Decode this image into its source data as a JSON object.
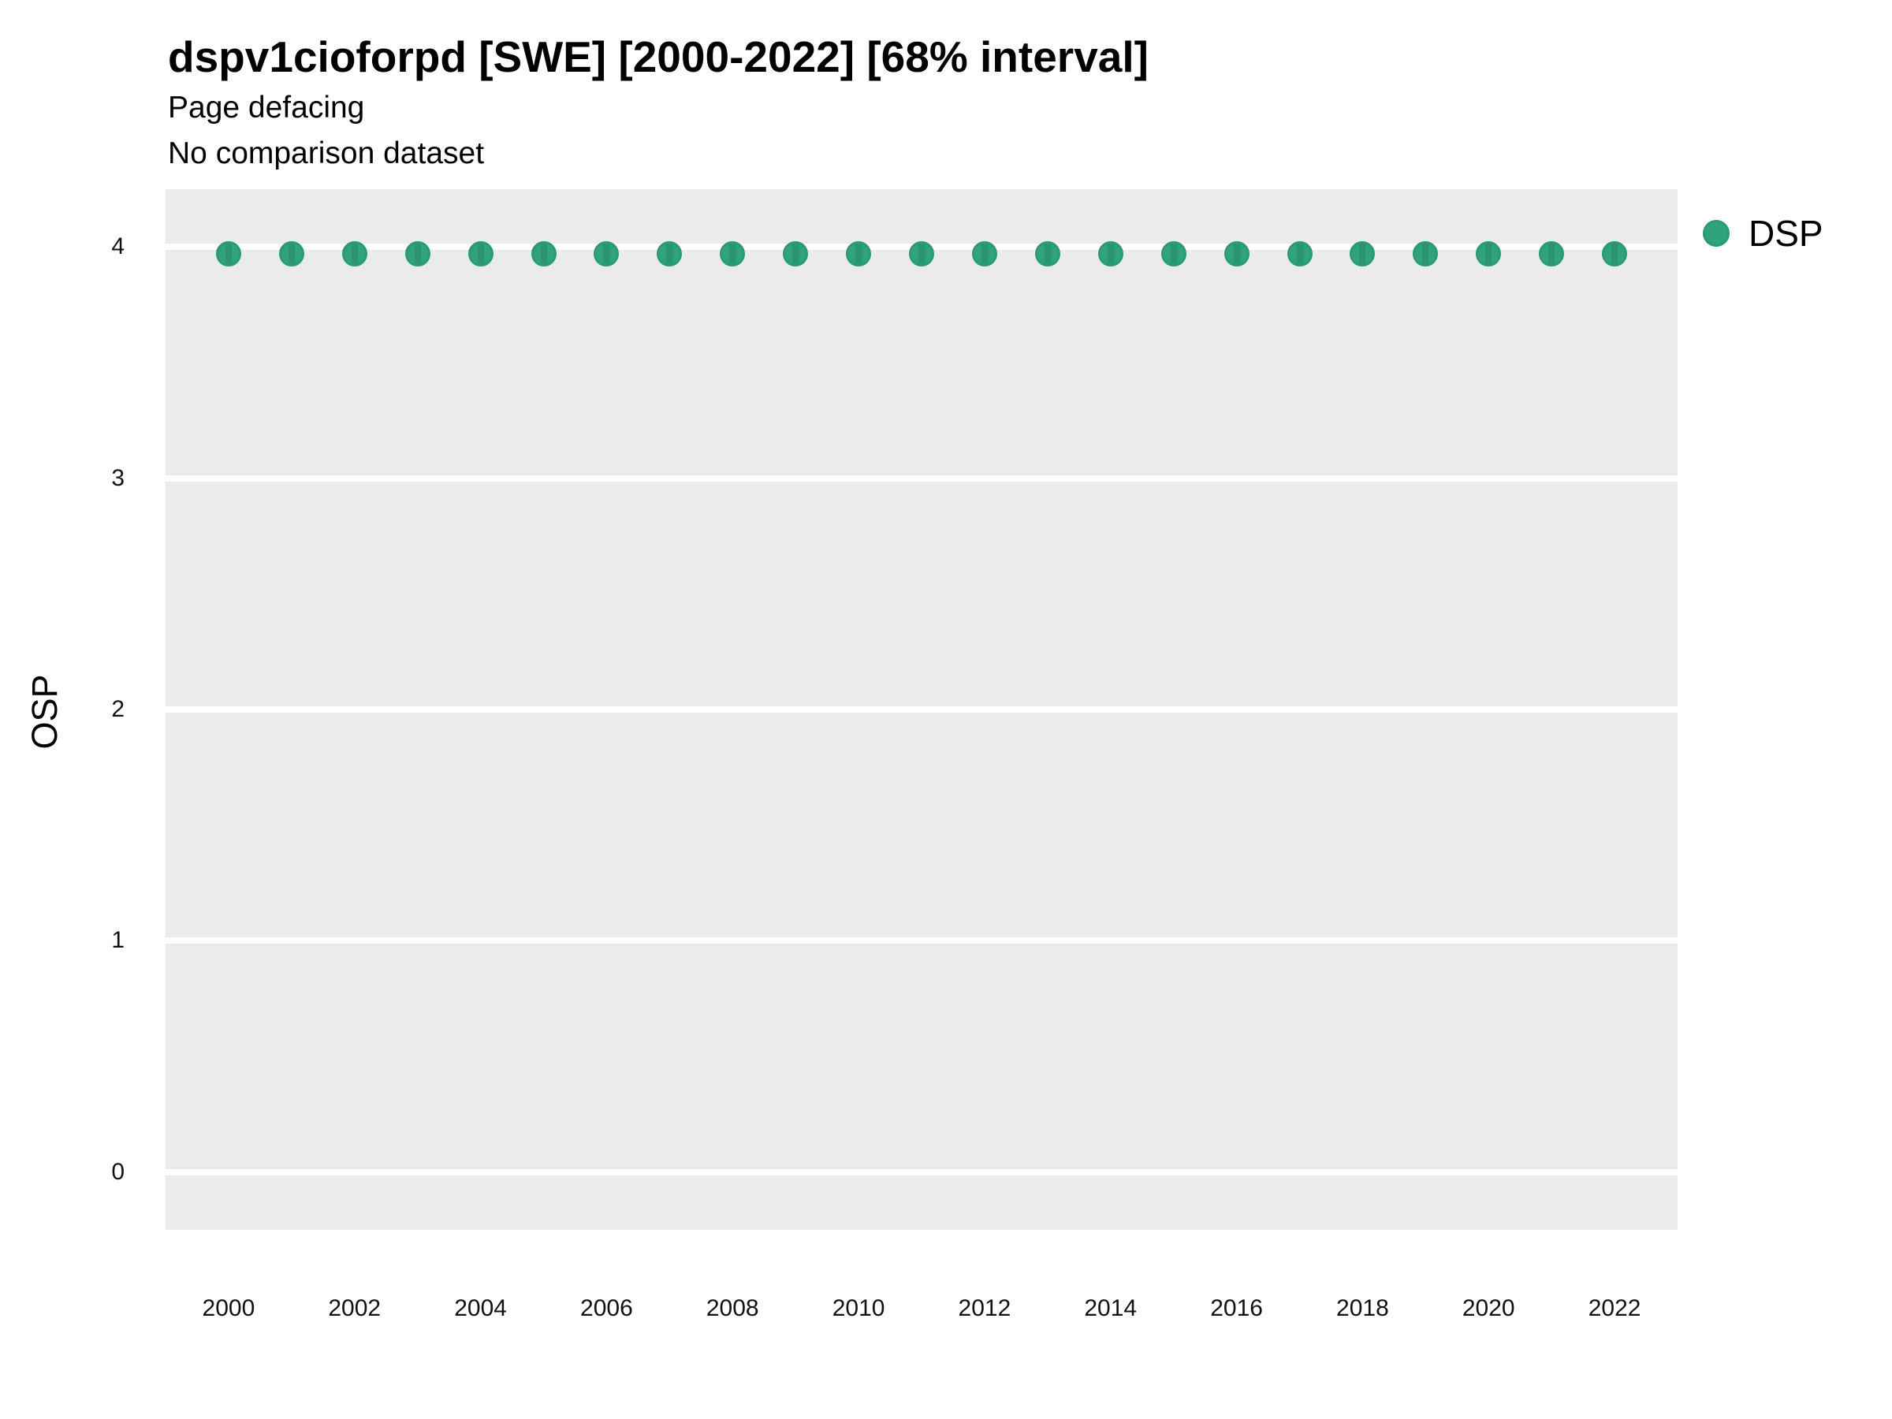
{
  "figure": {
    "title": "dspv1cioforpd [SWE] [2000-2022] [68% interval]",
    "subtitle": "Page defacing",
    "note": "No comparison dataset"
  },
  "chart_data": {
    "type": "scatter",
    "title": "dspv1cioforpd [SWE] [2000-2022] [68% interval]",
    "subtitle": "Page defacing",
    "annotation": "No comparison dataset",
    "xlabel": "",
    "ylabel": "OSP",
    "x": [
      2000,
      2001,
      2002,
      2003,
      2004,
      2005,
      2006,
      2007,
      2008,
      2009,
      2010,
      2011,
      2012,
      2013,
      2014,
      2015,
      2016,
      2017,
      2018,
      2019,
      2020,
      2021,
      2022
    ],
    "series": [
      {
        "name": "DSP",
        "values": [
          3.97,
          3.97,
          3.97,
          3.97,
          3.97,
          3.97,
          3.97,
          3.97,
          3.97,
          3.97,
          3.97,
          3.97,
          3.97,
          3.97,
          3.97,
          3.97,
          3.97,
          3.97,
          3.97,
          3.97,
          3.97,
          3.97,
          3.97
        ]
      }
    ],
    "xticks": [
      2000,
      2002,
      2004,
      2006,
      2008,
      2010,
      2012,
      2014,
      2016,
      2018,
      2020,
      2022
    ],
    "yticks": [
      0,
      1,
      2,
      3,
      4
    ],
    "xlim": [
      1999,
      2023
    ],
    "ylim": [
      -0.25,
      4.25
    ],
    "grid": "horizontal-major-only",
    "legend": {
      "position": "right",
      "entries": [
        "DSP"
      ]
    },
    "colors": {
      "marker_fill": "#30A37B",
      "marker_edge": "#279B72",
      "interval_line": "#2B9470",
      "panel_background": "#EBEBEB",
      "gridline": "#FFFFFF",
      "text": "#000000"
    }
  }
}
